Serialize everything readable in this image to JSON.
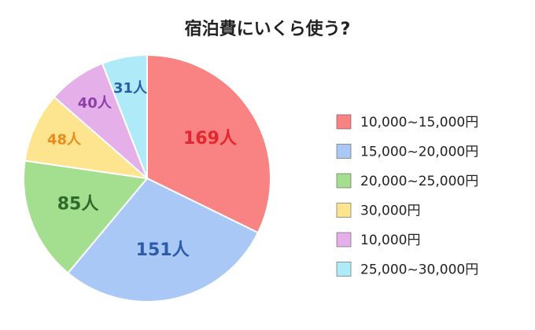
{
  "chart_data": {
    "type": "pie",
    "title": "宿泊費にいくら使う?",
    "categories": [
      "10,000~15,000円",
      "15,000~20,000円",
      "20,000~25,000円",
      "30,000円",
      "10,000円",
      "25,000~30,000円"
    ],
    "values": [
      169,
      151,
      85,
      48,
      40,
      31
    ],
    "value_labels": [
      "169人",
      "151人",
      "85人",
      "48人",
      "40人",
      "31人"
    ],
    "colors": [
      "#f98282",
      "#a9c8f5",
      "#a4df90",
      "#fde48e",
      "#e5afea",
      "#afeaf9"
    ],
    "label_colors": [
      "#e3262f",
      "#2b5cab",
      "#2e6b2a",
      "#ec8a1c",
      "#8b3fa8",
      "#2b5cab"
    ],
    "legend": "right"
  }
}
